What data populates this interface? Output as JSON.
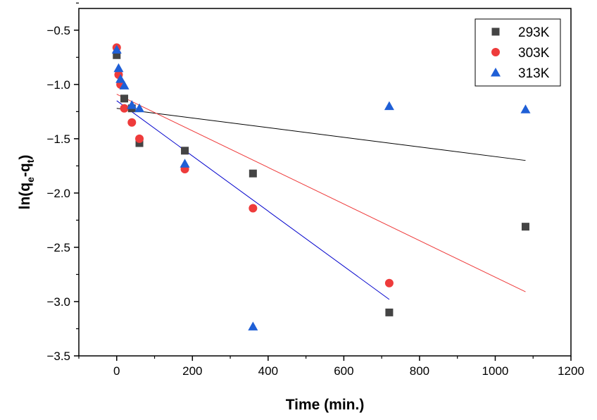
{
  "chart_data": {
    "type": "scatter",
    "title": "",
    "xlabel": "Time (min.)",
    "ylabel": "ln(q_e-q_t)",
    "ylabel_parts": {
      "main": "ln(q",
      "sub1": "e",
      "mid": "-q",
      "sub2": "t",
      "end": ")"
    },
    "xlim": [
      -100,
      1200
    ],
    "ylim": [
      -3.5,
      -0.3
    ],
    "xticks": [
      0,
      200,
      400,
      600,
      800,
      1000,
      1200
    ],
    "yticks": [
      -3.5,
      -3.0,
      -2.5,
      -2.0,
      -1.5,
      -1.0,
      -0.5
    ],
    "xtick_labels": [
      "0",
      "200",
      "400",
      "600",
      "800",
      "1000",
      "1200"
    ],
    "ytick_labels": [
      "−3.5",
      "−3.0",
      "−2.5",
      "−2.0",
      "−1.5",
      "−1.0",
      "−0.5"
    ],
    "legend_position": "top-right",
    "series": [
      {
        "name": "293K",
        "marker": "square",
        "color": "#444444",
        "points": [
          [
            0,
            -0.73
          ],
          [
            20,
            -1.13
          ],
          [
            40,
            -1.22
          ],
          [
            60,
            -1.54
          ],
          [
            180,
            -1.61
          ],
          [
            360,
            -1.82
          ],
          [
            720,
            -3.1
          ],
          [
            1080,
            -2.31
          ]
        ],
        "fit": {
          "x": [
            0,
            1080
          ],
          "y": [
            -1.22,
            -1.7
          ],
          "color": "#000000"
        }
      },
      {
        "name": "303K",
        "marker": "circle",
        "color": "#ee3b3b",
        "points": [
          [
            0,
            -0.66
          ],
          [
            5,
            -0.91
          ],
          [
            10,
            -1.0
          ],
          [
            20,
            -1.22
          ],
          [
            40,
            -1.35
          ],
          [
            60,
            -1.5
          ],
          [
            180,
            -1.78
          ],
          [
            360,
            -2.14
          ],
          [
            720,
            -2.83
          ]
        ],
        "fit": {
          "x": [
            0,
            1080
          ],
          "y": [
            -1.09,
            -2.91
          ],
          "color": "#ee3b3b"
        }
      },
      {
        "name": "313K",
        "marker": "triangle",
        "color": "#1f5fd6",
        "points": [
          [
            0,
            -0.68
          ],
          [
            5,
            -0.85
          ],
          [
            10,
            -0.95
          ],
          [
            20,
            -1.01
          ],
          [
            40,
            -1.19
          ],
          [
            60,
            -1.22
          ],
          [
            180,
            -1.73
          ],
          [
            360,
            -3.23
          ],
          [
            720,
            -1.2
          ],
          [
            1080,
            -1.23
          ]
        ],
        "fit": {
          "x": [
            0,
            720
          ],
          "y": [
            -1.15,
            -2.98
          ],
          "color": "#0000cc"
        }
      }
    ]
  }
}
